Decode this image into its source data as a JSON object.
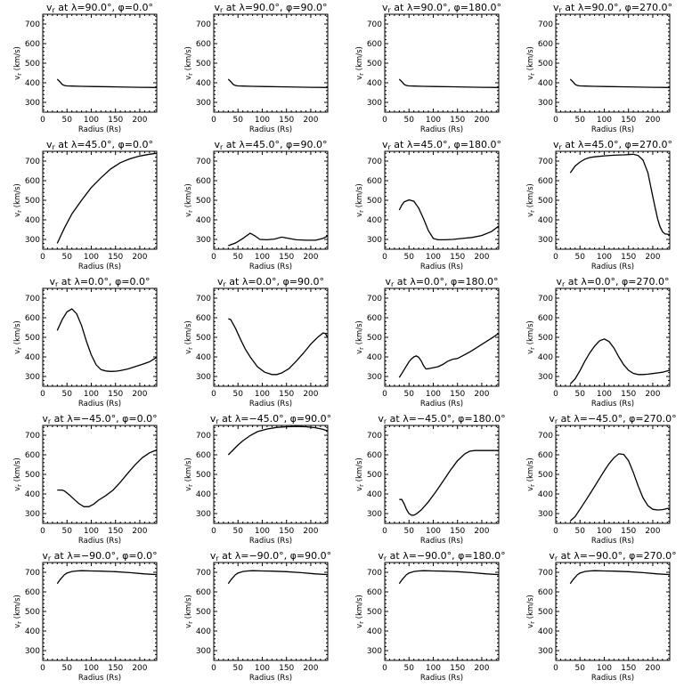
{
  "chart_data": [
    {
      "type": "line",
      "title": "vr at λ=90.0°, φ=0.0°",
      "xlabel": "Radius (Rs)",
      "ylabel": "vr (km/s)",
      "xlim": [
        0,
        235
      ],
      "ylim": [
        250,
        750
      ],
      "x": [
        30,
        35,
        40,
        45,
        50,
        60,
        80,
        100,
        150,
        200,
        235
      ],
      "values": [
        418,
        406,
        392,
        386,
        384,
        383,
        382,
        381,
        379,
        377,
        376
      ]
    },
    {
      "type": "line",
      "title": "vr at λ=90.0°, φ=90.0°",
      "xlabel": "Radius (Rs)",
      "ylabel": "vr (km/s)",
      "xlim": [
        0,
        235
      ],
      "ylim": [
        250,
        750
      ],
      "x": [
        30,
        35,
        40,
        45,
        50,
        60,
        80,
        100,
        150,
        200,
        235
      ],
      "values": [
        418,
        406,
        392,
        386,
        384,
        383,
        382,
        381,
        379,
        377,
        376
      ]
    },
    {
      "type": "line",
      "title": "vr at λ=90.0°, φ=180.0°",
      "xlabel": "Radius (Rs)",
      "ylabel": "vr (km/s)",
      "xlim": [
        0,
        235
      ],
      "ylim": [
        250,
        750
      ],
      "x": [
        30,
        35,
        40,
        45,
        50,
        60,
        80,
        100,
        150,
        200,
        235
      ],
      "values": [
        418,
        406,
        392,
        386,
        384,
        383,
        382,
        381,
        379,
        377,
        376
      ]
    },
    {
      "type": "line",
      "title": "vr at λ=90.0°, φ=270.0°",
      "xlabel": "Radius (Rs)",
      "ylabel": "vr (km/s)",
      "xlim": [
        0,
        235
      ],
      "ylim": [
        250,
        750
      ],
      "x": [
        30,
        35,
        40,
        45,
        50,
        60,
        80,
        100,
        150,
        200,
        235
      ],
      "values": [
        418,
        406,
        392,
        386,
        384,
        383,
        382,
        381,
        379,
        377,
        376
      ]
    },
    {
      "type": "line",
      "title": "vr at λ=45.0°, φ=0.0°",
      "xlabel": "Radius (Rs)",
      "ylabel": "vr (km/s)",
      "xlim": [
        0,
        235
      ],
      "ylim": [
        250,
        750
      ],
      "x": [
        30,
        45,
        60,
        80,
        100,
        120,
        140,
        160,
        180,
        200,
        220,
        235
      ],
      "values": [
        280,
        360,
        430,
        500,
        565,
        615,
        660,
        692,
        712,
        726,
        735,
        740
      ]
    },
    {
      "type": "line",
      "title": "vr at λ=45.0°, φ=90.0°",
      "xlabel": "Radius (Rs)",
      "ylabel": "vr (km/s)",
      "xlim": [
        0,
        235
      ],
      "ylim": [
        250,
        750
      ],
      "x": [
        30,
        45,
        60,
        75,
        85,
        95,
        110,
        125,
        140,
        155,
        170,
        190,
        210,
        225,
        235
      ],
      "values": [
        268,
        282,
        305,
        332,
        318,
        300,
        298,
        302,
        312,
        305,
        298,
        296,
        296,
        305,
        318
      ]
    },
    {
      "type": "line",
      "title": "vr at λ=45.0°, φ=180.0°",
      "xlabel": "Radius (Rs)",
      "ylabel": "vr (km/s)",
      "xlim": [
        0,
        235
      ],
      "ylim": [
        250,
        750
      ],
      "x": [
        30,
        35,
        40,
        50,
        60,
        70,
        80,
        90,
        100,
        110,
        125,
        140,
        160,
        180,
        200,
        220,
        235
      ],
      "values": [
        450,
        475,
        492,
        502,
        495,
        460,
        405,
        345,
        305,
        298,
        298,
        300,
        305,
        310,
        320,
        340,
        368
      ]
    },
    {
      "type": "line",
      "title": "vr at λ=45.0°, φ=270.0°",
      "xlabel": "Radius (Rs)",
      "ylabel": "vr (km/s)",
      "xlim": [
        0,
        235
      ],
      "ylim": [
        250,
        750
      ],
      "x": [
        30,
        40,
        50,
        60,
        70,
        80,
        100,
        120,
        140,
        160,
        170,
        180,
        190,
        200,
        205,
        210,
        215,
        220,
        225,
        235
      ],
      "values": [
        640,
        675,
        695,
        710,
        718,
        722,
        727,
        730,
        732,
        735,
        728,
        705,
        640,
        520,
        460,
        405,
        365,
        340,
        328,
        325
      ]
    },
    {
      "type": "line",
      "title": "vr at λ=0.0°, φ=0.0°",
      "xlabel": "Radius (Rs)",
      "ylabel": "vr (km/s)",
      "xlim": [
        0,
        235
      ],
      "ylim": [
        250,
        750
      ],
      "x": [
        30,
        40,
        50,
        60,
        70,
        80,
        90,
        100,
        110,
        120,
        130,
        140,
        150,
        160,
        175,
        190,
        205,
        220,
        235
      ],
      "values": [
        535,
        590,
        630,
        645,
        620,
        560,
        480,
        410,
        360,
        335,
        328,
        326,
        327,
        330,
        338,
        350,
        362,
        375,
        398
      ]
    },
    {
      "type": "line",
      "title": "vr at λ=0.0°, φ=90.0°",
      "xlabel": "Radius (Rs)",
      "ylabel": "vr (km/s)",
      "xlim": [
        0,
        235
      ],
      "ylim": [
        250,
        750
      ],
      "x": [
        30,
        35,
        45,
        55,
        65,
        75,
        90,
        105,
        120,
        130,
        140,
        155,
        170,
        185,
        200,
        215,
        225,
        230,
        235
      ],
      "values": [
        595,
        590,
        545,
        490,
        440,
        400,
        350,
        322,
        310,
        310,
        318,
        340,
        378,
        420,
        465,
        502,
        522,
        520,
        498
      ]
    },
    {
      "type": "line",
      "title": "vr at λ=0.0°, φ=180.0°",
      "xlabel": "Radius (Rs)",
      "ylabel": "vr (km/s)",
      "xlim": [
        0,
        235
      ],
      "ylim": [
        250,
        750
      ],
      "x": [
        30,
        35,
        40,
        50,
        55,
        60,
        65,
        70,
        75,
        80,
        85,
        90,
        100,
        110,
        120,
        130,
        140,
        150,
        160,
        175,
        190,
        205,
        220,
        235
      ],
      "values": [
        295,
        315,
        335,
        375,
        390,
        400,
        405,
        398,
        380,
        355,
        338,
        340,
        345,
        350,
        362,
        378,
        388,
        392,
        405,
        425,
        448,
        472,
        495,
        520
      ]
    },
    {
      "type": "line",
      "title": "vr at λ=0.0°, φ=270.0°",
      "xlabel": "Radius (Rs)",
      "ylabel": "vr (km/s)",
      "xlim": [
        0,
        235
      ],
      "ylim": [
        250,
        750
      ],
      "x": [
        30,
        40,
        50,
        60,
        70,
        80,
        90,
        100,
        110,
        120,
        130,
        140,
        150,
        160,
        170,
        180,
        190,
        200,
        210,
        220,
        235
      ],
      "values": [
        262,
        288,
        330,
        378,
        420,
        455,
        482,
        492,
        478,
        445,
        400,
        360,
        332,
        316,
        310,
        310,
        312,
        315,
        318,
        322,
        332
      ]
    },
    {
      "type": "line",
      "title": "vr at λ=−45.0°, φ=0.0°",
      "xlabel": "Radius (Rs)",
      "ylabel": "vr (km/s)",
      "xlim": [
        0,
        235
      ],
      "ylim": [
        250,
        750
      ],
      "x": [
        30,
        40,
        45,
        55,
        65,
        75,
        85,
        95,
        105,
        115,
        130,
        145,
        160,
        175,
        190,
        205,
        220,
        235
      ],
      "values": [
        420,
        420,
        415,
        395,
        372,
        350,
        335,
        335,
        348,
        368,
        392,
        420,
        460,
        505,
        548,
        585,
        610,
        625
      ]
    },
    {
      "type": "line",
      "title": "vr at λ=−45.0°, φ=90.0°",
      "xlabel": "Radius (Rs)",
      "ylabel": "vr (km/s)",
      "xlim": [
        0,
        235
      ],
      "ylim": [
        250,
        750
      ],
      "x": [
        30,
        40,
        50,
        60,
        75,
        90,
        110,
        130,
        150,
        170,
        190,
        210,
        225,
        235
      ],
      "values": [
        600,
        625,
        650,
        672,
        698,
        718,
        732,
        740,
        743,
        745,
        743,
        738,
        730,
        722
      ]
    },
    {
      "type": "line",
      "title": "vr at λ=−45.0°, φ=180.0°",
      "xlabel": "Radius (Rs)",
      "ylabel": "vr (km/s)",
      "xlim": [
        0,
        235
      ],
      "ylim": [
        250,
        750
      ],
      "x": [
        30,
        35,
        40,
        45,
        50,
        55,
        60,
        65,
        75,
        90,
        105,
        120,
        135,
        150,
        165,
        175,
        185,
        195,
        210,
        220,
        235
      ],
      "values": [
        372,
        372,
        350,
        320,
        300,
        292,
        292,
        298,
        318,
        360,
        410,
        465,
        520,
        570,
        605,
        618,
        622,
        622,
        622,
        622,
        622
      ]
    },
    {
      "type": "line",
      "title": "vr at λ=−45.0°, φ=270.0°",
      "xlabel": "Radius (Rs)",
      "ylabel": "vr (km/s)",
      "xlim": [
        0,
        235
      ],
      "ylim": [
        250,
        750
      ],
      "x": [
        30,
        40,
        50,
        60,
        70,
        80,
        90,
        100,
        110,
        120,
        130,
        140,
        150,
        160,
        170,
        180,
        190,
        200,
        210,
        220,
        235
      ],
      "values": [
        262,
        285,
        322,
        360,
        398,
        438,
        478,
        518,
        555,
        585,
        605,
        602,
        570,
        510,
        440,
        380,
        340,
        322,
        318,
        320,
        328
      ]
    },
    {
      "type": "line",
      "title": "vr at λ=−90.0°, φ=0.0°",
      "xlabel": "Radius (Rs)",
      "ylabel": "vr (km/s)",
      "xlim": [
        0,
        235
      ],
      "ylim": [
        250,
        750
      ],
      "x": [
        30,
        35,
        40,
        45,
        50,
        60,
        70,
        80,
        100,
        120,
        150,
        180,
        210,
        235
      ],
      "values": [
        642,
        660,
        675,
        688,
        696,
        704,
        707,
        708,
        707,
        706,
        703,
        698,
        692,
        688
      ]
    },
    {
      "type": "line",
      "title": "vr at λ=−90.0°, φ=90.0°",
      "xlabel": "Radius (Rs)",
      "ylabel": "vr (km/s)",
      "xlim": [
        0,
        235
      ],
      "ylim": [
        250,
        750
      ],
      "x": [
        30,
        35,
        40,
        45,
        50,
        60,
        70,
        80,
        100,
        120,
        150,
        180,
        210,
        235
      ],
      "values": [
        642,
        660,
        675,
        688,
        696,
        704,
        707,
        708,
        707,
        706,
        703,
        698,
        692,
        688
      ]
    },
    {
      "type": "line",
      "title": "vr at λ=−90.0°, φ=180.0°",
      "xlabel": "Radius (Rs)",
      "ylabel": "vr (km/s)",
      "xlim": [
        0,
        235
      ],
      "ylim": [
        250,
        750
      ],
      "x": [
        30,
        35,
        40,
        45,
        50,
        60,
        70,
        80,
        100,
        120,
        150,
        180,
        210,
        235
      ],
      "values": [
        642,
        660,
        675,
        688,
        696,
        704,
        707,
        708,
        707,
        706,
        703,
        698,
        692,
        688
      ]
    },
    {
      "type": "line",
      "title": "vr at λ=−90.0°, φ=270.0°",
      "xlabel": "Radius (Rs)",
      "ylabel": "vr (km/s)",
      "xlim": [
        0,
        235
      ],
      "ylim": [
        250,
        750
      ],
      "x": [
        30,
        35,
        40,
        45,
        50,
        60,
        70,
        80,
        100,
        120,
        150,
        180,
        210,
        235
      ],
      "values": [
        642,
        660,
        675,
        688,
        696,
        704,
        707,
        708,
        707,
        706,
        703,
        698,
        692,
        688
      ]
    }
  ],
  "axes": {
    "x_ticks": [
      0,
      50,
      100,
      150,
      200
    ],
    "y_ticks": [
      300,
      400,
      500,
      600,
      700
    ],
    "x_minor_step": 10,
    "y_minor_step": 20
  },
  "colors": {
    "background": "#ffffff",
    "ink": "#000000"
  }
}
